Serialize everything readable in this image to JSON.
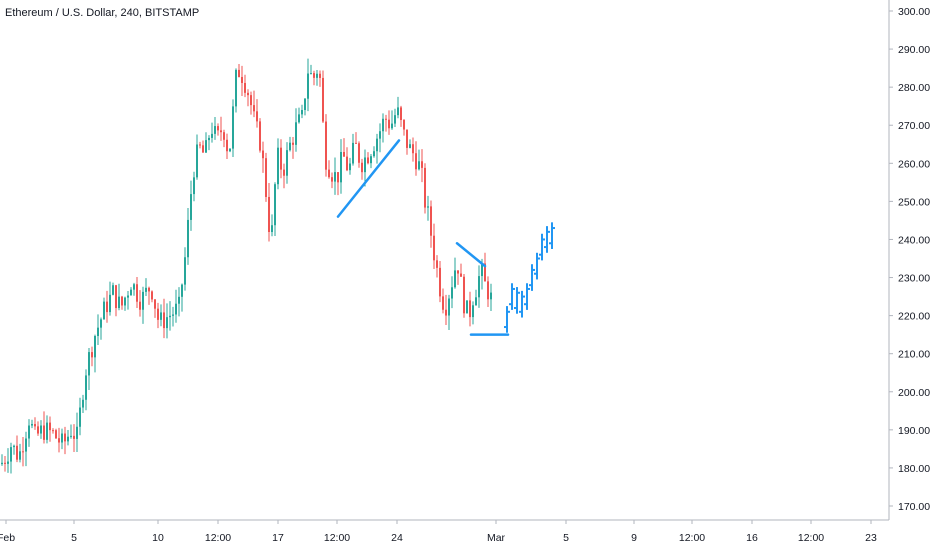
{
  "header": {
    "symbol_title": "Ethereum / U.S. Dollar, 240, BITSTAMP"
  },
  "colors": {
    "up": "#26a69a",
    "down": "#ef5350",
    "drawing": "#2196f3",
    "axis_line": "#b2b5be",
    "text": "#131722"
  },
  "chart_data": {
    "type": "candlestick",
    "title": "Ethereum / U.S. Dollar, 240, BITSTAMP",
    "ylabel": "",
    "ylim": [
      165,
      304
    ],
    "y_ticks": [
      300,
      290,
      280,
      270,
      260,
      250,
      240,
      230,
      220,
      210,
      200,
      190,
      180,
      170
    ],
    "y_tick_labels": [
      "300.00",
      "290.00",
      "280.00",
      "270.00",
      "260.00",
      "250.00",
      "240.00",
      "230.00",
      "220.00",
      "210.00",
      "200.00",
      "190.00",
      "180.00",
      "170.00"
    ],
    "x_tick_labels": [
      "Feb",
      "5",
      "10",
      "12:00",
      "17",
      "12:00",
      "24",
      "Mar",
      "5",
      "9",
      "12:00",
      "16",
      "12:00",
      "23"
    ],
    "grid": false,
    "legend": "none",
    "close_path": [
      [
        0,
        181
      ],
      [
        5,
        183
      ],
      [
        10,
        186
      ],
      [
        18,
        183
      ],
      [
        24,
        189
      ],
      [
        28,
        193
      ],
      [
        34,
        188
      ],
      [
        42,
        190
      ],
      [
        52,
        189
      ],
      [
        62,
        186
      ],
      [
        70,
        190
      ],
      [
        76,
        188
      ],
      [
        84,
        205
      ],
      [
        94,
        215
      ],
      [
        104,
        222
      ],
      [
        112,
        226
      ],
      [
        120,
        222
      ],
      [
        130,
        229
      ],
      [
        140,
        224
      ],
      [
        150,
        228
      ],
      [
        158,
        218
      ],
      [
        168,
        220
      ],
      [
        178,
        222
      ],
      [
        184,
        235
      ],
      [
        192,
        258
      ],
      [
        198,
        264
      ],
      [
        204,
        262
      ],
      [
        210,
        270
      ],
      [
        216,
        266
      ],
      [
        222,
        270
      ],
      [
        228,
        262
      ],
      [
        236,
        285
      ],
      [
        242,
        283
      ],
      [
        248,
        278
      ],
      [
        254,
        270
      ],
      [
        260,
        265
      ],
      [
        266,
        250
      ],
      [
        270,
        238
      ],
      [
        276,
        262
      ],
      [
        282,
        258
      ],
      [
        288,
        264
      ],
      [
        296,
        270
      ],
      [
        302,
        272
      ],
      [
        306,
        285
      ],
      [
        312,
        282
      ],
      [
        318,
        286
      ],
      [
        324,
        262
      ],
      [
        330,
        258
      ],
      [
        336,
        256
      ],
      [
        342,
        262
      ],
      [
        348,
        258
      ],
      [
        354,
        265
      ],
      [
        360,
        260
      ],
      [
        366,
        262
      ],
      [
        372,
        265
      ],
      [
        378,
        268
      ],
      [
        384,
        272
      ],
      [
        390,
        270
      ],
      [
        396,
        274
      ],
      [
        402,
        268
      ],
      [
        408,
        264
      ],
      [
        414,
        262
      ],
      [
        420,
        258
      ],
      [
        424,
        250
      ],
      [
        428,
        245
      ],
      [
        432,
        238
      ],
      [
        436,
        232
      ],
      [
        440,
        226
      ],
      [
        444,
        222
      ],
      [
        448,
        226
      ],
      [
        452,
        230
      ],
      [
        456,
        235
      ],
      [
        460,
        228
      ],
      [
        464,
        222
      ],
      [
        468,
        220
      ],
      [
        472,
        225
      ],
      [
        476,
        228
      ],
      [
        480,
        232
      ],
      [
        484,
        228
      ],
      [
        488,
        226
      ],
      [
        492,
        223
      ]
    ],
    "projection_bars": [
      [
        507,
        219
      ],
      [
        512,
        225
      ],
      [
        517,
        224
      ],
      [
        522,
        223
      ],
      [
        527,
        225
      ],
      [
        532,
        230
      ],
      [
        537,
        233
      ],
      [
        542,
        238
      ],
      [
        547,
        240
      ],
      [
        552,
        241
      ]
    ],
    "drawings": [
      {
        "from": [
          338,
          246
        ],
        "to": [
          399,
          266
        ]
      },
      {
        "from": [
          457,
          239
        ],
        "to": [
          485,
          233
        ]
      },
      {
        "from": [
          471,
          215
        ],
        "to": [
          508,
          215
        ]
      }
    ]
  }
}
